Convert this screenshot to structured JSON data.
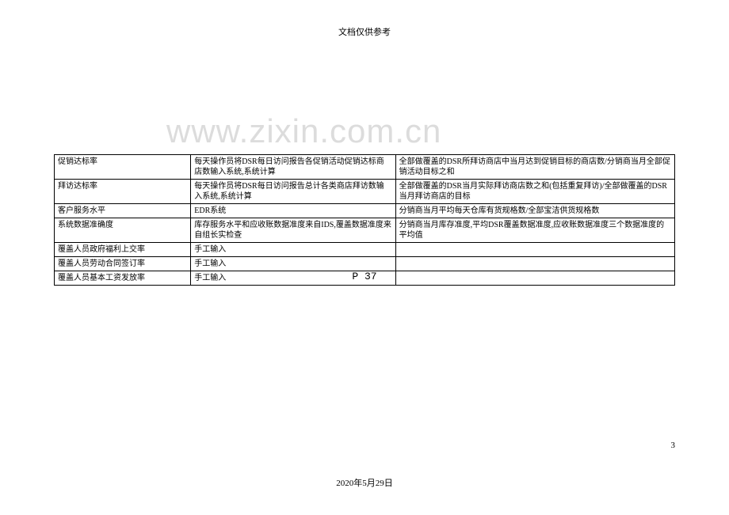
{
  "header": {
    "title": "文档仅供参考"
  },
  "watermark": {
    "text": "www.zixin.com.cn"
  },
  "table": {
    "rows": [
      {
        "col1": "促销达标率",
        "col2": "每天操作员将DSR每日访问报告各促销活动促销达标商店数输入系统,系统计算",
        "col3": "全部做覆盖的DSR所拜访商店中当月达到促销目标的商店数/分销商当月全部促销活动目标之和"
      },
      {
        "col1": "拜访达标率",
        "col2": "每天操作员将DSR每日访问报告总计各类商店拜访数输入系统,系统计算",
        "col3": "全部做覆盖的DSR当月实际拜访商店数之和(包括重复拜访)/全部做覆盖的DSR当月拜访商店的目标"
      },
      {
        "col1": "客户服务水平",
        "col2": "EDR系统",
        "col3": "分销商当月平均每天仓库有货规格数/全部宝洁供货规格数"
      },
      {
        "col1": "系统数据准确度",
        "col2": "库存服务水平和应收账数据准度来自IDS,覆盖数据准度来自组长实检查",
        "col3": "分销商当月库存准度,平均DSR覆盖数据准度,应收账数据准度三个数据准度的平均值"
      },
      {
        "col1": "覆盖人员政府福利上交率",
        "col2": "手工输入",
        "col3": ""
      },
      {
        "col1": "覆盖人员劳动合同签订率",
        "col2": "手工输入",
        "col3": ""
      },
      {
        "col1": "覆盖人员基本工资发放率",
        "col2": "手工输入",
        "col3": ""
      }
    ]
  },
  "pageLabel": {
    "text": "P 37"
  },
  "pageNumber": {
    "text": "3"
  },
  "footer": {
    "date": "2020年5月29日"
  },
  "colors": {
    "background": "#ffffff",
    "text": "#000000",
    "watermark": "#dcdcdc",
    "border": "#000000"
  },
  "typography": {
    "header_fontsize": 11,
    "table_fontsize": 10,
    "watermark_fontsize": 42,
    "pagelabel_fontsize": 13,
    "footer_fontsize": 11
  }
}
